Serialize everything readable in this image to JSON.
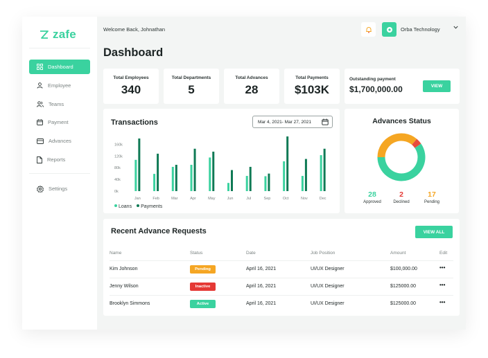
{
  "brand": {
    "name": "zafe",
    "color": "#3ad29f"
  },
  "sidebar": {
    "items": [
      {
        "label": "Dashboard",
        "icon": "grid-icon",
        "active": true
      },
      {
        "label": "Employee",
        "icon": "user-icon"
      },
      {
        "label": "Teams",
        "icon": "users-icon"
      },
      {
        "label": "Payment",
        "icon": "calendar-icon"
      },
      {
        "label": "Advances",
        "icon": "card-icon"
      },
      {
        "label": "Reports",
        "icon": "document-icon"
      }
    ],
    "settings": {
      "label": "Settings",
      "icon": "gear-icon"
    }
  },
  "header": {
    "welcome": "Welcome Back, Johnathan",
    "company": "Orba Technology",
    "notification_icon": "bell-icon"
  },
  "page_title": "Dashboard",
  "stats": [
    {
      "label": "Total Employees",
      "value": "340"
    },
    {
      "label": "Total Departments",
      "value": "5"
    },
    {
      "label": "Total Advances",
      "value": "28"
    },
    {
      "label": "Total Payments",
      "value": "$103K"
    }
  ],
  "outstanding": {
    "label": "Outstanding payment",
    "value": "$1,700,000.00",
    "button": "VIEW"
  },
  "transactions": {
    "title": "Transactions",
    "date_range": "Mar 4, 2021- Mar 27, 2021",
    "legend": [
      "Loans",
      "Payments"
    ]
  },
  "chart_data": {
    "type": "bar",
    "title": "Transactions",
    "categories": [
      "Jan",
      "Feb",
      "Mar",
      "Apr",
      "May",
      "Jun",
      "Jul",
      "Sep",
      "Oct",
      "Nov",
      "Dec"
    ],
    "y_ticks": [
      "160k",
      "120k",
      "80k",
      "40k",
      "0k"
    ],
    "ylim": [
      0,
      180000
    ],
    "series": [
      {
        "name": "Loans",
        "color": "#3ad29f",
        "values": [
          107000,
          59000,
          83000,
          90000,
          115000,
          28000,
          52000,
          51000,
          102000,
          52000,
          123000
        ]
      },
      {
        "name": "Payments",
        "color": "#0f7a55",
        "values": [
          180000,
          128000,
          90000,
          145000,
          135000,
          72000,
          83000,
          60000,
          187000,
          110000,
          145000
        ]
      }
    ],
    "legend": "bottom-left"
  },
  "advances_status": {
    "title": "Advances Status",
    "chart": {
      "type": "pie",
      "slices": [
        {
          "label": "Approved",
          "value": 28,
          "color": "#3ad29f"
        },
        {
          "label": "Declined",
          "value": 2,
          "color": "#e74c3c"
        },
        {
          "label": "Pending",
          "value": 17,
          "color": "#f5a623"
        }
      ]
    }
  },
  "requests": {
    "title": "Recent Advance Requests",
    "view_all": "VIEW ALL",
    "columns": [
      "Name",
      "Status",
      "Date",
      "Job Position",
      "Amount",
      "Edit"
    ],
    "rows": [
      {
        "name": "Kim Johnson",
        "status": "Pending",
        "status_color": "#f5a623",
        "date": "April 16, 2021",
        "position": "UI/UX Designer",
        "amount": "$100,000.00",
        "edit": "•••"
      },
      {
        "name": "Jenny Wilson",
        "status": "Inactive",
        "status_color": "#e53935",
        "date": "April 16, 2021",
        "position": "UI/UX Designer",
        "amount": "$125000.00",
        "edit": "•••"
      },
      {
        "name": "Brooklyn Simmons",
        "status": "Active",
        "status_color": "#3ad29f",
        "date": "April 16, 2021",
        "position": "UI/UX Designer",
        "amount": "$125000.00",
        "edit": "•••"
      }
    ]
  }
}
